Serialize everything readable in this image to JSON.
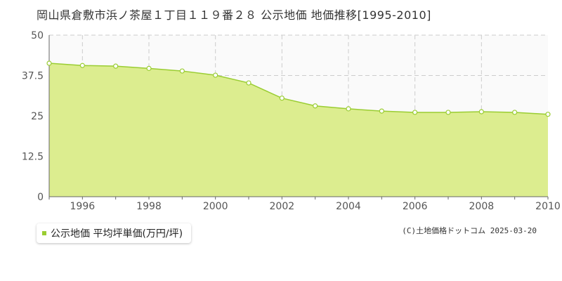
{
  "chart_data": {
    "type": "area",
    "title": "岡山県倉敷市浜ノ茶屋１丁目１１９番２８ 公示地価 地価推移[1995-2010]",
    "xlabel": "",
    "ylabel": "",
    "x": [
      1995,
      1996,
      1997,
      1998,
      1999,
      2000,
      2001,
      2002,
      2003,
      2004,
      2005,
      2006,
      2007,
      2008,
      2009,
      2010
    ],
    "series": [
      {
        "name": "公示地価 平均坪単価(万円/坪)",
        "values": [
          41.3,
          40.6,
          40.4,
          39.7,
          38.9,
          37.6,
          35.2,
          30.5,
          28.1,
          27.2,
          26.5,
          26.1,
          26.1,
          26.3,
          26.1,
          25.5
        ],
        "color": "#9acd32",
        "fill": "#dced8f"
      }
    ],
    "xlim": [
      1995,
      2010
    ],
    "ylim": [
      0,
      50
    ],
    "yticks": [
      "0",
      "12.5",
      "25",
      "37.5",
      "50"
    ],
    "xticks": [
      "1996",
      "1998",
      "2000",
      "2002",
      "2004",
      "2006",
      "2008",
      "2010"
    ],
    "grid": true,
    "legend": "bottom-left"
  },
  "legend": {
    "label": "公示地価 平均坪単価(万円/坪)"
  },
  "credit": "(C)土地価格ドットコム 2025-03-20",
  "colors": {
    "line": "#9acd32",
    "area": "#dced8f",
    "grid": "#cccccc",
    "background": "#fafafa"
  }
}
